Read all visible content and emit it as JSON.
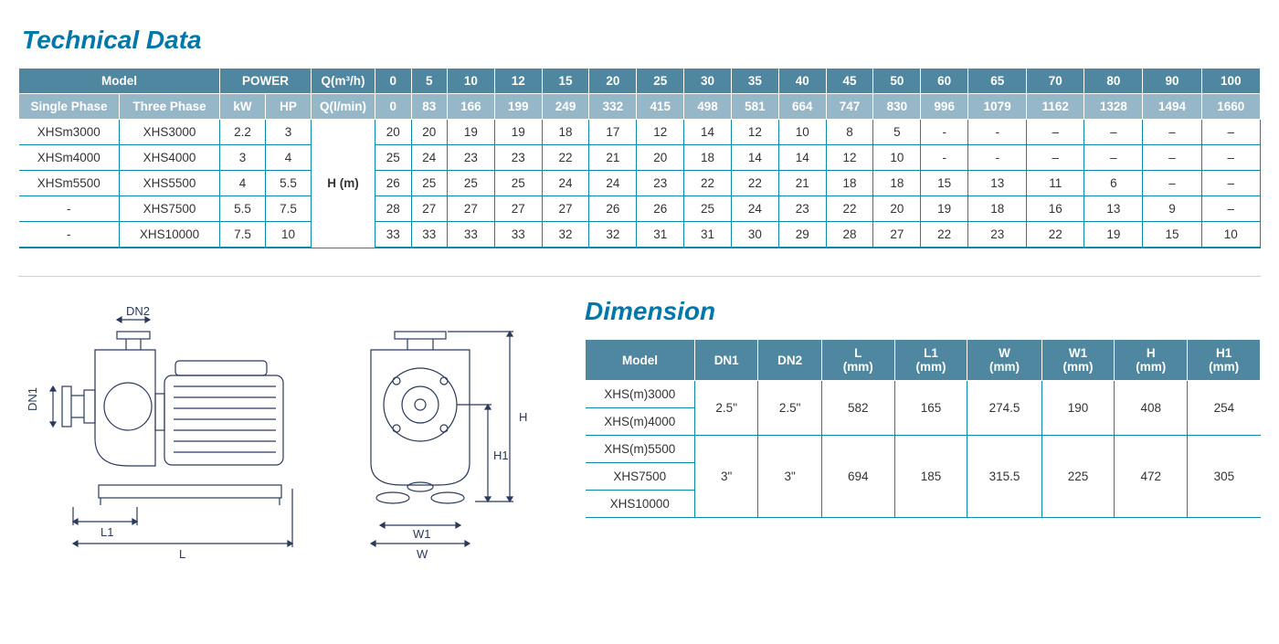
{
  "titles": {
    "technical": "Technical Data",
    "dimension": "Dimension"
  },
  "tech_table": {
    "header_row1": {
      "model": "Model",
      "power": "POWER",
      "q_m3h": "Q(m³/h)",
      "flows": [
        "0",
        "5",
        "10",
        "12",
        "15",
        "20",
        "25",
        "30",
        "35",
        "40",
        "45",
        "50",
        "60",
        "65",
        "70",
        "80",
        "90",
        "100"
      ]
    },
    "header_row2": {
      "single_phase": "Single Phase",
      "three_phase": "Three Phase",
      "kw": "kW",
      "hp": "HP",
      "q_lmin": "Q(l/min)",
      "flows": [
        "0",
        "83",
        "166",
        "199",
        "249",
        "332",
        "415",
        "498",
        "581",
        "664",
        "747",
        "830",
        "996",
        "1079",
        "1162",
        "1328",
        "1494",
        "1660"
      ]
    },
    "hm_label": "H (m)",
    "rows": [
      {
        "sp": "XHSm3000",
        "tp": "XHS3000",
        "kw": "2.2",
        "hp": "3",
        "vals": [
          "20",
          "20",
          "19",
          "19",
          "18",
          "17",
          "12",
          "14",
          "12",
          "10",
          "8",
          "5",
          "-",
          "-",
          "–",
          "–",
          "–",
          "–"
        ]
      },
      {
        "sp": "XHSm4000",
        "tp": "XHS4000",
        "kw": "3",
        "hp": "4",
        "vals": [
          "25",
          "24",
          "23",
          "23",
          "22",
          "21",
          "20",
          "18",
          "14",
          "14",
          "12",
          "10",
          "-",
          "-",
          "–",
          "–",
          "–",
          "–"
        ]
      },
      {
        "sp": "XHSm5500",
        "tp": "XHS5500",
        "kw": "4",
        "hp": "5.5",
        "vals": [
          "26",
          "25",
          "25",
          "25",
          "24",
          "24",
          "23",
          "22",
          "22",
          "21",
          "18",
          "18",
          "15",
          "13",
          "11",
          "6",
          "–",
          "–"
        ]
      },
      {
        "sp": "-",
        "tp": "XHS7500",
        "kw": "5.5",
        "hp": "7.5",
        "vals": [
          "28",
          "27",
          "27",
          "27",
          "27",
          "26",
          "26",
          "25",
          "24",
          "23",
          "22",
          "20",
          "19",
          "18",
          "16",
          "13",
          "9",
          "–"
        ]
      },
      {
        "sp": "-",
        "tp": "XHS10000",
        "kw": "7.5",
        "hp": "10",
        "vals": [
          "33",
          "33",
          "33",
          "33",
          "32",
          "32",
          "31",
          "31",
          "30",
          "29",
          "28",
          "27",
          "22",
          "23",
          "22",
          "19",
          "15",
          "10"
        ]
      }
    ]
  },
  "dim_table": {
    "headers": [
      "Model",
      "DN1",
      "DN2",
      "L\n(mm)",
      "L1\n(mm)",
      "W\n(mm)",
      "W1\n(mm)",
      "H\n(mm)",
      "H1\n(mm)"
    ],
    "group1_models": [
      "XHS(m)3000",
      "XHS(m)4000"
    ],
    "group1_vals": [
      "2.5\"",
      "2.5\"",
      "582",
      "165",
      "274.5",
      "190",
      "408",
      "254"
    ],
    "group2_models": [
      "XHS(m)5500",
      "XHS7500",
      "XHS10000"
    ],
    "group2_vals": [
      "3\"",
      "3\"",
      "694",
      "185",
      "315.5",
      "225",
      "472",
      "305"
    ]
  },
  "drawing_labels": {
    "dn1": "DN1",
    "dn2": "DN2",
    "l": "L",
    "l1": "L1",
    "w": "W",
    "w1": "W1",
    "h": "H",
    "h1": "H1"
  },
  "colors": {
    "header_dark": "#4f87a0",
    "header_light": "#96b7c8",
    "border": "#0b8aa8",
    "title": "#0077aa",
    "text": "#333333"
  }
}
